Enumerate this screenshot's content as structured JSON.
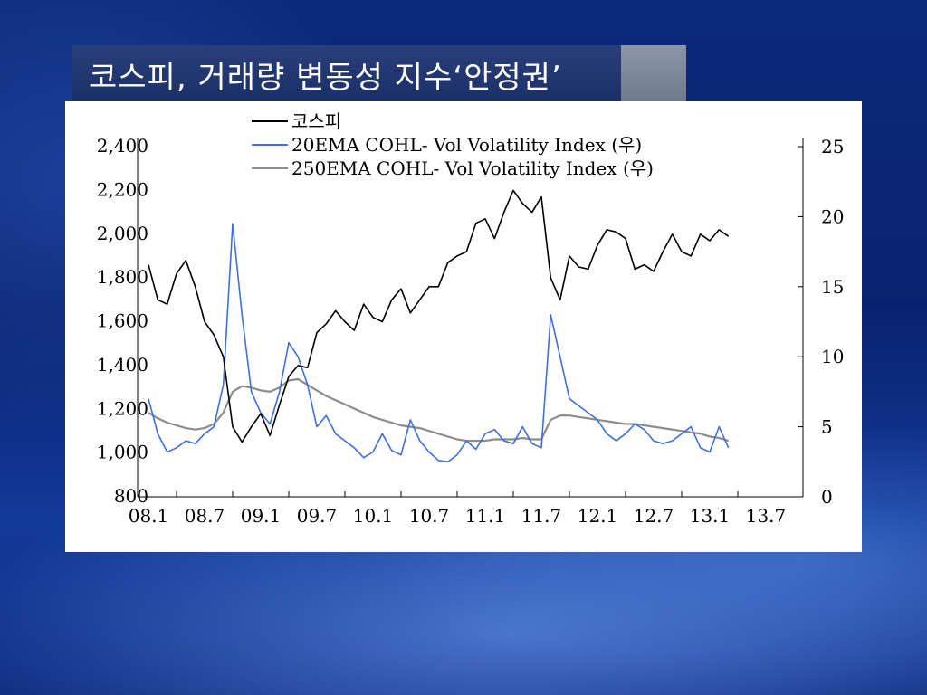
{
  "slide": {
    "title": "코스피, 거래량 변동성 지수‘안정권’"
  },
  "colors": {
    "kospi": "#000000",
    "ema20": "#3f6fd8",
    "ema250": "#8c8c8c"
  },
  "chart_data": {
    "type": "line",
    "title": "",
    "x_ticks": [
      "08.1",
      "08.7",
      "09.1",
      "09.7",
      "10.1",
      "10.7",
      "11.1",
      "11.7",
      "12.1",
      "12.7",
      "13.1",
      "13.7"
    ],
    "y_left": {
      "ticks": [
        "2,400",
        "2,200",
        "2,000",
        "1,800",
        "1,600",
        "1,400",
        "1,200",
        "1,000",
        "800"
      ],
      "range": [
        800,
        2400
      ]
    },
    "y_right": {
      "ticks": [
        "25",
        "20",
        "15",
        "10",
        "5",
        "0"
      ],
      "range": [
        0,
        25
      ]
    },
    "legend_position": "top-center",
    "series": [
      {
        "name": "코스피",
        "axis": "left",
        "points": [
          [
            "08.1",
            1860
          ],
          [
            "08.2",
            1700
          ],
          [
            "08.3",
            1680
          ],
          [
            "08.4",
            1820
          ],
          [
            "08.5",
            1880
          ],
          [
            "08.6",
            1760
          ],
          [
            "08.7",
            1600
          ],
          [
            "08.8",
            1540
          ],
          [
            "08.9",
            1440
          ],
          [
            "08.10",
            1120
          ],
          [
            "08.11",
            1050
          ],
          [
            "08.12",
            1120
          ],
          [
            "09.1",
            1180
          ],
          [
            "09.2",
            1080
          ],
          [
            "09.3",
            1220
          ],
          [
            "09.4",
            1350
          ],
          [
            "09.5",
            1400
          ],
          [
            "09.6",
            1390
          ],
          [
            "09.7",
            1550
          ],
          [
            "09.8",
            1590
          ],
          [
            "09.9",
            1650
          ],
          [
            "09.10",
            1600
          ],
          [
            "09.11",
            1560
          ],
          [
            "09.12",
            1680
          ],
          [
            "10.1",
            1620
          ],
          [
            "10.2",
            1600
          ],
          [
            "10.3",
            1700
          ],
          [
            "10.4",
            1750
          ],
          [
            "10.5",
            1640
          ],
          [
            "10.6",
            1700
          ],
          [
            "10.7",
            1760
          ],
          [
            "10.8",
            1760
          ],
          [
            "10.9",
            1870
          ],
          [
            "10.10",
            1900
          ],
          [
            "10.11",
            1920
          ],
          [
            "10.12",
            2050
          ],
          [
            "11.1",
            2070
          ],
          [
            "11.2",
            1980
          ],
          [
            "11.3",
            2100
          ],
          [
            "11.4",
            2200
          ],
          [
            "11.5",
            2140
          ],
          [
            "11.6",
            2100
          ],
          [
            "11.7",
            2170
          ],
          [
            "11.8",
            1800
          ],
          [
            "11.9",
            1700
          ],
          [
            "11.10",
            1900
          ],
          [
            "11.11",
            1850
          ],
          [
            "11.12",
            1840
          ],
          [
            "12.1",
            1950
          ],
          [
            "12.2",
            2020
          ],
          [
            "12.3",
            2010
          ],
          [
            "12.4",
            1980
          ],
          [
            "12.5",
            1840
          ],
          [
            "12.6",
            1860
          ],
          [
            "12.7",
            1830
          ],
          [
            "12.8",
            1920
          ],
          [
            "12.9",
            2000
          ],
          [
            "12.10",
            1920
          ],
          [
            "12.11",
            1900
          ],
          [
            "12.12",
            2000
          ],
          [
            "13.1",
            1970
          ],
          [
            "13.2",
            2020
          ],
          [
            "13.3",
            1990
          ]
        ]
      },
      {
        "name": "20EMA COHL- Vol Volatility Index (우)",
        "axis": "right",
        "points": [
          [
            "08.1",
            7.0
          ],
          [
            "08.2",
            4.5
          ],
          [
            "08.3",
            3.2
          ],
          [
            "08.4",
            3.5
          ],
          [
            "08.5",
            4.0
          ],
          [
            "08.6",
            3.8
          ],
          [
            "08.7",
            4.5
          ],
          [
            "08.8",
            5.0
          ],
          [
            "08.9",
            8.0
          ],
          [
            "08.10",
            19.5
          ],
          [
            "08.11",
            13.0
          ],
          [
            "08.12",
            7.5
          ],
          [
            "09.1",
            6.0
          ],
          [
            "09.2",
            5.2
          ],
          [
            "09.3",
            7.5
          ],
          [
            "09.4",
            11.0
          ],
          [
            "09.5",
            10.0
          ],
          [
            "09.6",
            8.0
          ],
          [
            "09.7",
            5.0
          ],
          [
            "09.8",
            5.8
          ],
          [
            "09.9",
            4.5
          ],
          [
            "09.10",
            4.0
          ],
          [
            "09.11",
            3.5
          ],
          [
            "09.12",
            2.8
          ],
          [
            "10.1",
            3.2
          ],
          [
            "10.2",
            4.5
          ],
          [
            "10.3",
            3.3
          ],
          [
            "10.4",
            3.0
          ],
          [
            "10.5",
            5.5
          ],
          [
            "10.6",
            4.0
          ],
          [
            "10.7",
            3.2
          ],
          [
            "10.8",
            2.6
          ],
          [
            "10.9",
            2.5
          ],
          [
            "10.10",
            3.0
          ],
          [
            "10.11",
            4.0
          ],
          [
            "10.12",
            3.4
          ],
          [
            "11.1",
            4.5
          ],
          [
            "11.2",
            4.8
          ],
          [
            "11.3",
            4.0
          ],
          [
            "11.4",
            3.8
          ],
          [
            "11.5",
            5.0
          ],
          [
            "11.6",
            3.8
          ],
          [
            "11.7",
            3.5
          ],
          [
            "11.8",
            13.0
          ],
          [
            "11.9",
            10.0
          ],
          [
            "11.10",
            7.0
          ],
          [
            "11.11",
            6.5
          ],
          [
            "11.12",
            6.0
          ],
          [
            "12.1",
            5.5
          ],
          [
            "12.2",
            4.5
          ],
          [
            "12.3",
            4.0
          ],
          [
            "12.4",
            4.5
          ],
          [
            "12.5",
            5.2
          ],
          [
            "12.6",
            4.8
          ],
          [
            "12.7",
            4.0
          ],
          [
            "12.8",
            3.8
          ],
          [
            "12.9",
            4.0
          ],
          [
            "12.10",
            4.5
          ],
          [
            "12.11",
            5.0
          ],
          [
            "12.12",
            3.5
          ],
          [
            "13.1",
            3.2
          ],
          [
            "13.2",
            5.0
          ],
          [
            "13.3",
            3.5
          ]
        ]
      },
      {
        "name": "250EMA COHL- Vol Volatility Index (우)",
        "axis": "right",
        "points": [
          [
            "08.1",
            6.0
          ],
          [
            "08.2",
            5.6
          ],
          [
            "08.3",
            5.3
          ],
          [
            "08.4",
            5.1
          ],
          [
            "08.5",
            4.9
          ],
          [
            "08.6",
            4.8
          ],
          [
            "08.7",
            4.9
          ],
          [
            "08.8",
            5.2
          ],
          [
            "08.9",
            6.0
          ],
          [
            "08.10",
            7.5
          ],
          [
            "08.11",
            7.9
          ],
          [
            "08.12",
            7.8
          ],
          [
            "09.1",
            7.6
          ],
          [
            "09.2",
            7.5
          ],
          [
            "09.3",
            7.8
          ],
          [
            "09.4",
            8.3
          ],
          [
            "09.5",
            8.4
          ],
          [
            "09.6",
            8.0
          ],
          [
            "09.7",
            7.6
          ],
          [
            "09.8",
            7.2
          ],
          [
            "09.9",
            6.9
          ],
          [
            "09.10",
            6.6
          ],
          [
            "09.11",
            6.3
          ],
          [
            "09.12",
            6.0
          ],
          [
            "10.1",
            5.7
          ],
          [
            "10.2",
            5.5
          ],
          [
            "10.3",
            5.3
          ],
          [
            "10.4",
            5.1
          ],
          [
            "10.5",
            5.0
          ],
          [
            "10.6",
            4.9
          ],
          [
            "10.7",
            4.7
          ],
          [
            "10.8",
            4.5
          ],
          [
            "10.9",
            4.3
          ],
          [
            "10.10",
            4.1
          ],
          [
            "10.11",
            4.0
          ],
          [
            "10.12",
            4.0
          ],
          [
            "11.1",
            4.0
          ],
          [
            "11.2",
            4.1
          ],
          [
            "11.3",
            4.1
          ],
          [
            "11.4",
            4.1
          ],
          [
            "11.5",
            4.2
          ],
          [
            "11.6",
            4.1
          ],
          [
            "11.7",
            4.1
          ],
          [
            "11.8",
            5.5
          ],
          [
            "11.9",
            5.8
          ],
          [
            "11.10",
            5.8
          ],
          [
            "11.11",
            5.7
          ],
          [
            "11.12",
            5.6
          ],
          [
            "12.1",
            5.5
          ],
          [
            "12.2",
            5.4
          ],
          [
            "12.3",
            5.3
          ],
          [
            "12.4",
            5.2
          ],
          [
            "12.5",
            5.2
          ],
          [
            "12.6",
            5.1
          ],
          [
            "12.7",
            5.0
          ],
          [
            "12.8",
            4.9
          ],
          [
            "12.9",
            4.8
          ],
          [
            "12.10",
            4.7
          ],
          [
            "12.11",
            4.6
          ],
          [
            "12.12",
            4.5
          ],
          [
            "13.1",
            4.3
          ],
          [
            "13.2",
            4.2
          ],
          [
            "13.3",
            4.0
          ]
        ]
      }
    ]
  }
}
